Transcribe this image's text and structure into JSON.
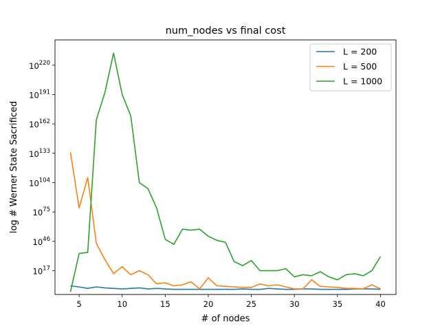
{
  "chart_data": {
    "type": "line",
    "title": "num_nodes vs final cost",
    "xlabel": "# of nodes",
    "ylabel": "log # Werner State Sacrificed",
    "x": [
      4,
      5,
      6,
      7,
      8,
      9,
      10,
      11,
      12,
      13,
      14,
      15,
      16,
      17,
      18,
      19,
      20,
      21,
      22,
      23,
      24,
      25,
      26,
      27,
      28,
      29,
      30,
      31,
      32,
      33,
      34,
      35,
      36,
      37,
      38,
      39,
      40
    ],
    "x_ticks": [
      5,
      10,
      15,
      20,
      25,
      30,
      35,
      40
    ],
    "xlim": [
      2.2,
      41.8
    ],
    "y_scale": "log",
    "y_ticks": [
      {
        "exp": 17,
        "label": "10",
        "sup": "17"
      },
      {
        "exp": 46,
        "label": "10",
        "sup": "46"
      },
      {
        "exp": 75,
        "label": "10",
        "sup": "75"
      },
      {
        "exp": 104,
        "label": "10",
        "sup": "104"
      },
      {
        "exp": 133,
        "label": "10",
        "sup": "133"
      },
      {
        "exp": 162,
        "label": "10",
        "sup": "162"
      },
      {
        "exp": 191,
        "label": "10",
        "sup": "191"
      },
      {
        "exp": 220,
        "label": "10",
        "sup": "220"
      }
    ],
    "ylim_exp": [
      -6.5,
      245
    ],
    "grid": false,
    "legend_position": "top-right",
    "series": [
      {
        "name": "L = 200",
        "color": "#1f77b4",
        "log10_values": [
          2,
          1,
          -0.5,
          1,
          0,
          -0.5,
          -1,
          -0.5,
          0,
          -1,
          -0.5,
          -1,
          -1.5,
          -1.5,
          -1.5,
          -1.5,
          -1.5,
          -1.5,
          -1.5,
          -1.5,
          -1,
          -1.5,
          -1.5,
          -0.5,
          -1,
          -1.5,
          -1.5,
          -1,
          -1,
          -1.5,
          -1.5,
          -1.5,
          -1.5,
          -1,
          -1,
          -1,
          -1.5
        ]
      },
      {
        "name": "L = 500",
        "color": "#ff7f0e",
        "log10_values": [
          134,
          79,
          109,
          44,
          28,
          14,
          21,
          13,
          17,
          13,
          4,
          5,
          2,
          3,
          6,
          -1,
          10,
          2,
          1.5,
          1,
          0.5,
          0.5,
          4,
          2,
          3,
          1,
          -1,
          -1,
          8,
          1.5,
          1,
          0.5,
          -0.5,
          -0.5,
          -1,
          3,
          -1
        ]
      },
      {
        "name": "L = 1000",
        "color": "#2ca02c",
        "log10_values": [
          -4,
          34,
          35,
          166,
          193,
          232,
          191,
          170,
          104,
          98,
          79,
          48,
          43,
          58,
          57,
          58,
          51,
          47,
          45,
          26,
          22,
          27,
          17,
          17,
          17,
          19,
          11,
          13,
          12,
          16,
          11,
          8,
          13,
          14,
          12,
          17,
          31
        ]
      }
    ]
  }
}
